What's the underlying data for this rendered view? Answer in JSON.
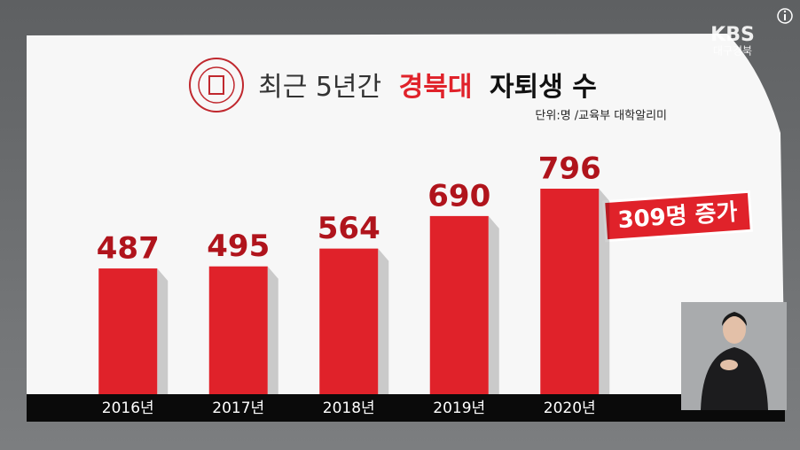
{
  "chart_data": {
    "type": "bar",
    "title": [
      "최근 5년간",
      "경북대",
      "자퇴생 수"
    ],
    "source": "단위:명 /교육부 대학알리미",
    "annotation": "309명 증가",
    "categories": [
      "2016년",
      "2017년",
      "2018년",
      "2019년",
      "2020년"
    ],
    "values": [
      487,
      495,
      564,
      690,
      796
    ],
    "color": "#e0222a",
    "label_color": "#b0141c",
    "title_highlight_color": "#e0222a",
    "broadcaster": {
      "name": "KBS",
      "region": "대구경북"
    }
  }
}
